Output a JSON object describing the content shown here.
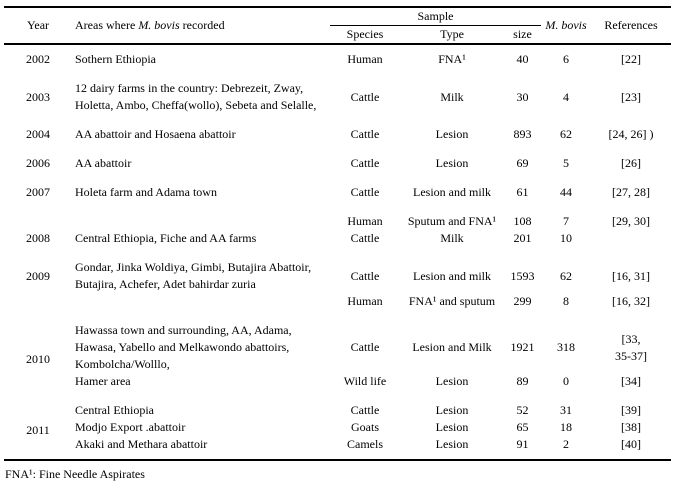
{
  "table": {
    "header": {
      "year": "Year",
      "areas_pre": "Areas where ",
      "areas_italic": "M. bovis",
      "areas_post": " recorded",
      "sample": "Sample",
      "species": "Species",
      "type": "Type",
      "size": "size",
      "mbovis": "M. bovis",
      "references": "References"
    },
    "groups": [
      {
        "rows": [
          {
            "year": "2002",
            "areas": "Sothern Ethiopia",
            "species": "Human",
            "type": "FNA¹",
            "size": "40",
            "mbovis": "6",
            "ref": "[22]"
          }
        ]
      },
      {
        "rows": [
          {
            "year": "2003",
            "areas": "12 dairy farms in the country: Debrezeit, Zway,\nHoletta, Ambo, Cheffa(wollo), Sebeta and Selalle,",
            "species": "Cattle",
            "type": "Milk",
            "size": "30",
            "mbovis": "4",
            "ref": "[23]"
          }
        ]
      },
      {
        "rows": [
          {
            "year": "2004",
            "areas": "AA abattoir and Hosaena abattoir",
            "species": "Cattle",
            "type": "Lesion",
            "size": "893",
            "mbovis": "62",
            "ref": "[24, 26] )"
          }
        ]
      },
      {
        "rows": [
          {
            "year": "2006",
            "areas": "AA abattoir",
            "species": "Cattle",
            "type": "Lesion",
            "size": "69",
            "mbovis": "5",
            "ref": "[26]"
          }
        ]
      },
      {
        "rows": [
          {
            "year": "2007",
            "areas": "Holeta farm and Adama town",
            "species": "Cattle",
            "type": "Lesion and milk",
            "size": "61",
            "mbovis": "44",
            "ref": "[27, 28]"
          }
        ]
      },
      {
        "rows": [
          {
            "year": "",
            "areas": "",
            "species": "Human",
            "type": "Sputum and FNA¹",
            "size": "108",
            "mbovis": "7",
            "ref": "[29, 30]"
          },
          {
            "year": "2008",
            "areas": "Central Ethiopia, Fiche and AA farms",
            "species": "Cattle",
            "type": "Milk",
            "size": "201",
            "mbovis": "10",
            "ref": ""
          }
        ]
      },
      {
        "rows": [
          {
            "year": "2009",
            "areas": "Gondar, Jinka Woldiya, Gimbi, Butajira Abattoir,\nButajira, Achefer, Adet bahirdar zuria",
            "species": "Cattle",
            "type": "Lesion and milk",
            "size": "1593",
            "mbovis": "62",
            "ref": "[16, 31]"
          },
          {
            "year": "",
            "areas": "",
            "species": "Human",
            "type": "FNA¹ and sputum",
            "size": "299",
            "mbovis": "8",
            "ref": "[16, 32]"
          }
        ]
      },
      {
        "rows": [
          {
            "year": "2010",
            "year_rowspan": 2,
            "areas": "Hawassa town and surrounding, AA, Adama,\nHawasa, Yabello and Melkawondo abattoirs,\nKombolcha/Wolllo,",
            "species": "Cattle",
            "type": "Lesion and Milk",
            "size": "1921",
            "mbovis": "318",
            "ref": "[33,\n35-37]"
          },
          {
            "areas": "Hamer area",
            "species": "Wild life",
            "type": "Lesion",
            "size": "89",
            "mbovis": "0",
            "ref": "[34]"
          }
        ]
      },
      {
        "rows": [
          {
            "year": "2011",
            "year_rowspan": 3,
            "areas": "Central Ethiopia",
            "species": "Cattle",
            "type": "Lesion",
            "size": "52",
            "mbovis": "31",
            "ref": "[39]"
          },
          {
            "areas": "Modjo Export .abattoir",
            "species": "Goats",
            "type": "Lesion",
            "size": "65",
            "mbovis": "18",
            "ref": "[38]"
          },
          {
            "areas": "Akaki and Methara abattoir",
            "species": "Camels",
            "type": "Lesion",
            "size": "91",
            "mbovis": "2",
            "ref": "[40]"
          }
        ]
      }
    ]
  },
  "footnote": "FNA¹: Fine Needle Aspirates"
}
